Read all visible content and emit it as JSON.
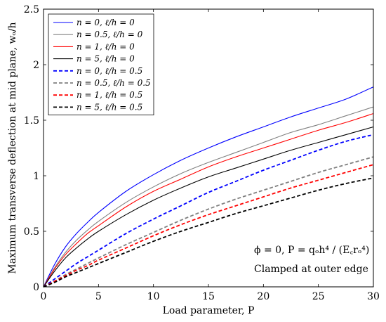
{
  "chart_data": {
    "type": "line",
    "xlabel": "Load parameter, P",
    "ylabel": "Maximum transverse deflection at mid plane, wₒ/h",
    "xlim": [
      0,
      30
    ],
    "ylim": [
      0,
      2.5
    ],
    "x_ticks": [
      "0",
      "5",
      "10",
      "15",
      "20",
      "25",
      "30"
    ],
    "y_ticks": [
      "0",
      "0.5",
      "1",
      "1.5",
      "2",
      "2.5"
    ],
    "x_tick_values": [
      0,
      5,
      10,
      15,
      20,
      25,
      30
    ],
    "y_tick_values": [
      0,
      0.5,
      1,
      1.5,
      2,
      2.5
    ],
    "grid": false,
    "legend_position": "top-left",
    "x": [
      0,
      1,
      2,
      3,
      4,
      5,
      7.5,
      10,
      12.5,
      15,
      17.5,
      20,
      22.5,
      25,
      27.5,
      30
    ],
    "series": [
      {
        "name": "n = 0,     ℓ/h = 0",
        "color": "#0000ff",
        "dash": "solid",
        "values": [
          0,
          0.2,
          0.36,
          0.48,
          0.58,
          0.67,
          0.86,
          1.01,
          1.14,
          1.25,
          1.35,
          1.44,
          1.53,
          1.61,
          1.69,
          1.8
        ]
      },
      {
        "name": "n = 0.5, ℓ/h = 0",
        "color": "#808080",
        "dash": "solid",
        "values": [
          0,
          0.17,
          0.31,
          0.42,
          0.51,
          0.59,
          0.76,
          0.9,
          1.02,
          1.12,
          1.21,
          1.3,
          1.39,
          1.46,
          1.54,
          1.62
        ]
      },
      {
        "name": "n = 1,     ℓ/h = 0",
        "color": "#ff0000",
        "dash": "solid",
        "values": [
          0,
          0.16,
          0.29,
          0.39,
          0.48,
          0.55,
          0.72,
          0.86,
          0.97,
          1.08,
          1.17,
          1.25,
          1.33,
          1.41,
          1.48,
          1.56
        ]
      },
      {
        "name": "n = 5,     ℓ/h = 0",
        "color": "#000000",
        "dash": "solid",
        "values": [
          0,
          0.14,
          0.26,
          0.35,
          0.43,
          0.5,
          0.65,
          0.78,
          0.89,
          0.99,
          1.07,
          1.15,
          1.23,
          1.3,
          1.37,
          1.44
        ]
      },
      {
        "name": "n = 0,     ℓ/h = 0.5",
        "color": "#0000ff",
        "dash": "dashed",
        "values": [
          0,
          0.07,
          0.14,
          0.21,
          0.27,
          0.33,
          0.48,
          0.61,
          0.73,
          0.85,
          0.95,
          1.05,
          1.14,
          1.23,
          1.31,
          1.37
        ]
      },
      {
        "name": "n = 0.5, ℓ/h = 0.5",
        "color": "#808080",
        "dash": "dashed",
        "values": [
          0,
          0.05,
          0.11,
          0.16,
          0.21,
          0.26,
          0.38,
          0.49,
          0.6,
          0.7,
          0.79,
          0.87,
          0.95,
          1.03,
          1.1,
          1.17
        ]
      },
      {
        "name": "n = 1,     ℓ/h = 0.5",
        "color": "#ff0000",
        "dash": "dashed",
        "values": [
          0,
          0.05,
          0.1,
          0.15,
          0.19,
          0.24,
          0.35,
          0.46,
          0.56,
          0.65,
          0.73,
          0.81,
          0.89,
          0.96,
          1.03,
          1.1
        ]
      },
      {
        "name": "n = 5,     ℓ/h = 0.5",
        "color": "#000000",
        "dash": "dashed",
        "values": [
          0,
          0.04,
          0.09,
          0.13,
          0.17,
          0.21,
          0.31,
          0.41,
          0.5,
          0.58,
          0.66,
          0.73,
          0.8,
          0.87,
          0.93,
          0.98
        ]
      }
    ],
    "annotation": {
      "line1": "ϕ = 0, P = qₒh⁴ / (E꜀rₒ⁴)",
      "line2": "Clamped at outer edge"
    }
  }
}
